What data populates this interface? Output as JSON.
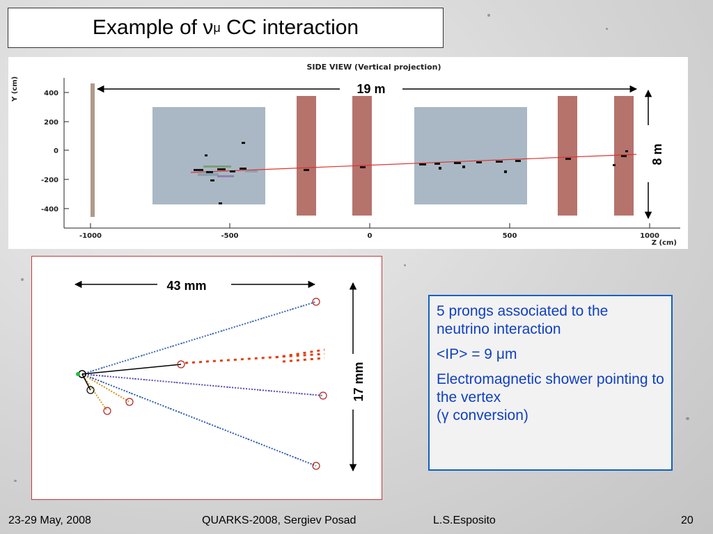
{
  "slide": {
    "title_prefix": "Example of ",
    "title_nu": "ν",
    "title_mu": "μ",
    "title_suffix": " CC interaction"
  },
  "side_view": {
    "title": "SIDE VIEW (Vertical projection)",
    "y_axis_label": "Y (cm)",
    "x_axis_label": "Z (cm)",
    "y_ticks": [
      "400",
      "200",
      "0",
      "-200",
      "-400"
    ],
    "x_ticks": [
      "-1000",
      "-500",
      "0",
      "500",
      "1000"
    ],
    "length_label": "19 m",
    "height_label": "8 m"
  },
  "vertex_view": {
    "width_label": "43 mm",
    "height_label": "17 mm"
  },
  "info": {
    "line1": "5 prongs associated to the neutrino interaction",
    "line2_prefix": "<IP> = 9 ",
    "line2_mu": "μ",
    "line2_suffix": "m",
    "line3": "Electromagnetic shower pointing to the vertex",
    "line4_prefix": "(",
    "line4_gamma": "γ",
    "line4_suffix": " conversion)"
  },
  "footer": {
    "date": "23-29 May, 2008",
    "conference": "QUARKS-2008, Sergiev Posad",
    "author": "L.S.Esposito",
    "page": "20"
  },
  "colors": {
    "target_block": "#a9b8c4",
    "spectrometer": "#b5736c",
    "info_text": "#1040c0",
    "info_border": "#1060c0",
    "panel_border": "#c0393b"
  }
}
